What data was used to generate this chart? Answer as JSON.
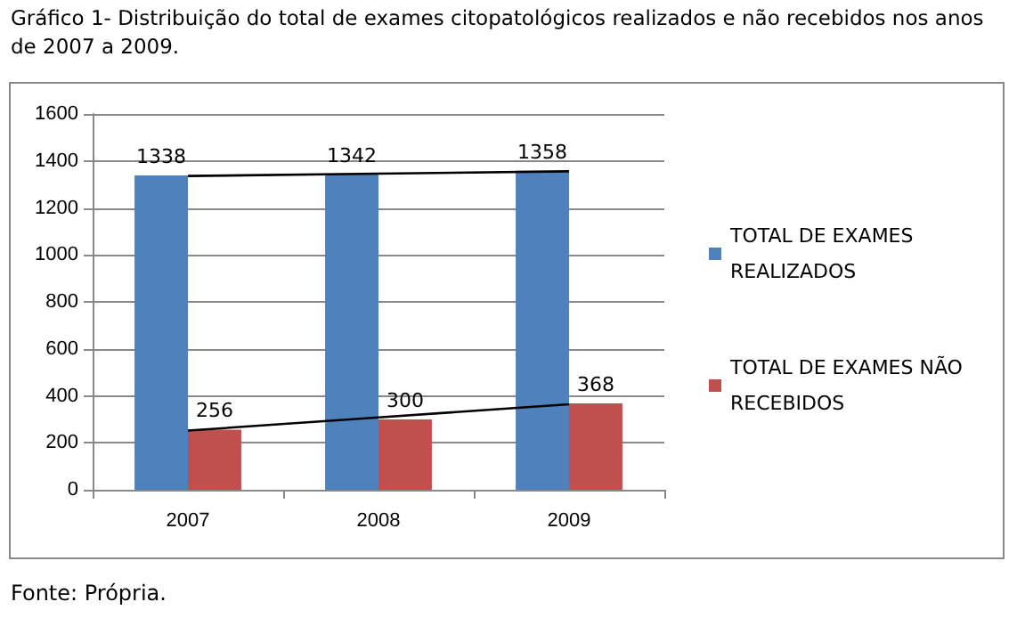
{
  "chart_data": {
    "type": "bar",
    "title": "Gráfico 1- Distribuição do total de exames citopatológicos realizados e não recebidos nos anos de 2007 a 2009.",
    "categories": [
      "2007",
      "2008",
      "2009"
    ],
    "series": [
      {
        "name": "TOTAL DE EXAMES REALIZADOS",
        "color": "#4f81bd",
        "values": [
          1338,
          1342,
          1358
        ],
        "value_labels": [
          "1338",
          "1342",
          "1358"
        ]
      },
      {
        "name": "TOTAL DE EXAMES NÃO RECEBIDOS",
        "color": "#c0504d",
        "values": [
          256,
          300,
          368
        ],
        "value_labels": [
          "256",
          "300",
          "368"
        ]
      },
      {
        "type": "line",
        "color": "#000000",
        "values": [
          1336,
          1346,
          1356
        ]
      },
      {
        "type": "line",
        "color": "#000000",
        "values": [
          252,
          308,
          364
        ]
      }
    ],
    "ylim": [
      0,
      1600
    ],
    "yticks": [
      0,
      200,
      400,
      600,
      800,
      1000,
      1200,
      1400,
      1600
    ],
    "grid": "y",
    "legend": "right",
    "marker": "none",
    "annotations": [
      "Fonte: Própria."
    ]
  }
}
